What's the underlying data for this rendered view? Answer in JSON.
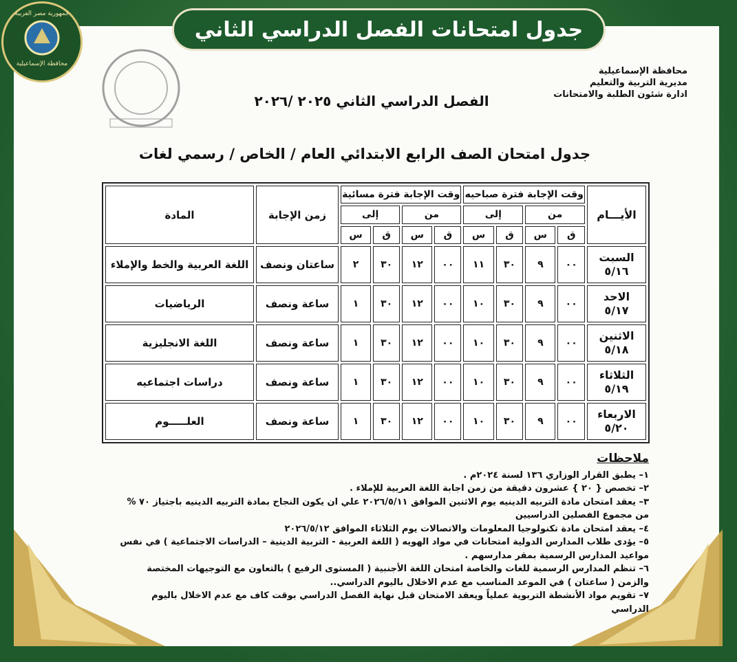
{
  "banner": {
    "title": "جدول امتحانات الفصل الدراسي الثاني"
  },
  "logo": {
    "top": "جمهورية مصر العربية",
    "bottom": "محافظة الإسماعيلية"
  },
  "header": {
    "org_lines": [
      "محافظة الإسماعيلية",
      "مديرية التربية والتعليم",
      "ادارة شئون الطلبة والامتحانات"
    ],
    "term": "الفصل الدراسي الثاني ٢٠٢٥ /٢٠٢٦",
    "table_title": "جدول امتحان الصف الرابع الابتدائي العام / الخاص / رسمي لغات"
  },
  "table": {
    "headers": {
      "days": "الأيـــام",
      "morning": "وقت الإجابة فترة صباحيه",
      "evening": "وقت الإجابة فترة مسائية",
      "duration": "زمن الإجابة",
      "subject": "المادة",
      "from": "من",
      "to": "إلى",
      "minute": "ق",
      "hour": "س"
    },
    "rows": [
      {
        "day": "السبت",
        "date": "٥/١٦",
        "morning": [
          "٠٠",
          "٩",
          "٣٠",
          "١١"
        ],
        "evening": [
          "٠٠",
          "١٢",
          "٣٠",
          "٢"
        ],
        "duration": "ساعتان ونصف",
        "subject": "اللغة العربية والخط والإملاء"
      },
      {
        "day": "الاحد",
        "date": "٥/١٧",
        "morning": [
          "٠٠",
          "٩",
          "٣٠",
          "١٠"
        ],
        "evening": [
          "٠٠",
          "١٢",
          "٣٠",
          "١"
        ],
        "duration": "ساعة ونصف",
        "subject": "الرياضيات"
      },
      {
        "day": "الاثنين",
        "date": "٥/١٨",
        "morning": [
          "٠٠",
          "٩",
          "٣٠",
          "١٠"
        ],
        "evening": [
          "٠٠",
          "١٢",
          "٣٠",
          "١"
        ],
        "duration": "ساعة ونصف",
        "subject": "اللغة الانجليزية"
      },
      {
        "day": "الثلاثاء",
        "date": "٥/١٩",
        "morning": [
          "٠٠",
          "٩",
          "٣٠",
          "١٠"
        ],
        "evening": [
          "٠٠",
          "١٢",
          "٣٠",
          "١"
        ],
        "duration": "ساعة ونصف",
        "subject": "دراسات اجتماعيه"
      },
      {
        "day": "الاربعاء",
        "date": "٥/٢٠",
        "morning": [
          "٠٠",
          "٩",
          "٣٠",
          "١٠"
        ],
        "evening": [
          "٠٠",
          "١٢",
          "٣٠",
          "١"
        ],
        "duration": "ساعة ونصف",
        "subject": "العلـــــوم"
      }
    ]
  },
  "notes": {
    "title": "ملاحظات",
    "items": [
      "١– يطبق القرار الوزاري ١٣٦ لسنة ٢٠٢٤م .",
      "٢– تخصص { ٢٠ } عشرون دقيقة من زمن اجابة اللغة العربية للإملاء .",
      "٣– يعقد امتحان مادة التربيه الدينيه يوم الاثنين الموافق ٢٠٢٦/٥/١١ علي ان يكون النجاح بمادة التربيه الدينيه باجتياز ٧٠ % من مجموع الفصلين الدراسيين",
      "٤– يعقد امتحان مادة تكنولوجيا المعلومات والاتصالات يوم الثلاثاء الموافق ٢٠٢٦/٥/١٢",
      "٥– يؤدى طلاب المدارس الدولية امتحانات في مواد الهويه ( اللغة العربية - التربية الدينية – الدراسات الاجتماعية ) في نفس مواعيد المدارس الرسمية بمقر مدارسهم .",
      "٦– تنظم المدارس الرسمية للغات والخاصة امتحان اللغة الأجنبية ( المستوى الرفيع ) بالتعاون مع التوجيهات المختصة والزمن ( ساعتان ) في الموعد المناسب مع عدم الاخلال باليوم الدراسي..",
      "٧– تقويم مواد الأنشطة التربوية عملياً ويعقد الامتحان قبل نهاية الفصل الدراسي بوقت كاف مع عدم الاخلال باليوم الدراسي"
    ]
  }
}
